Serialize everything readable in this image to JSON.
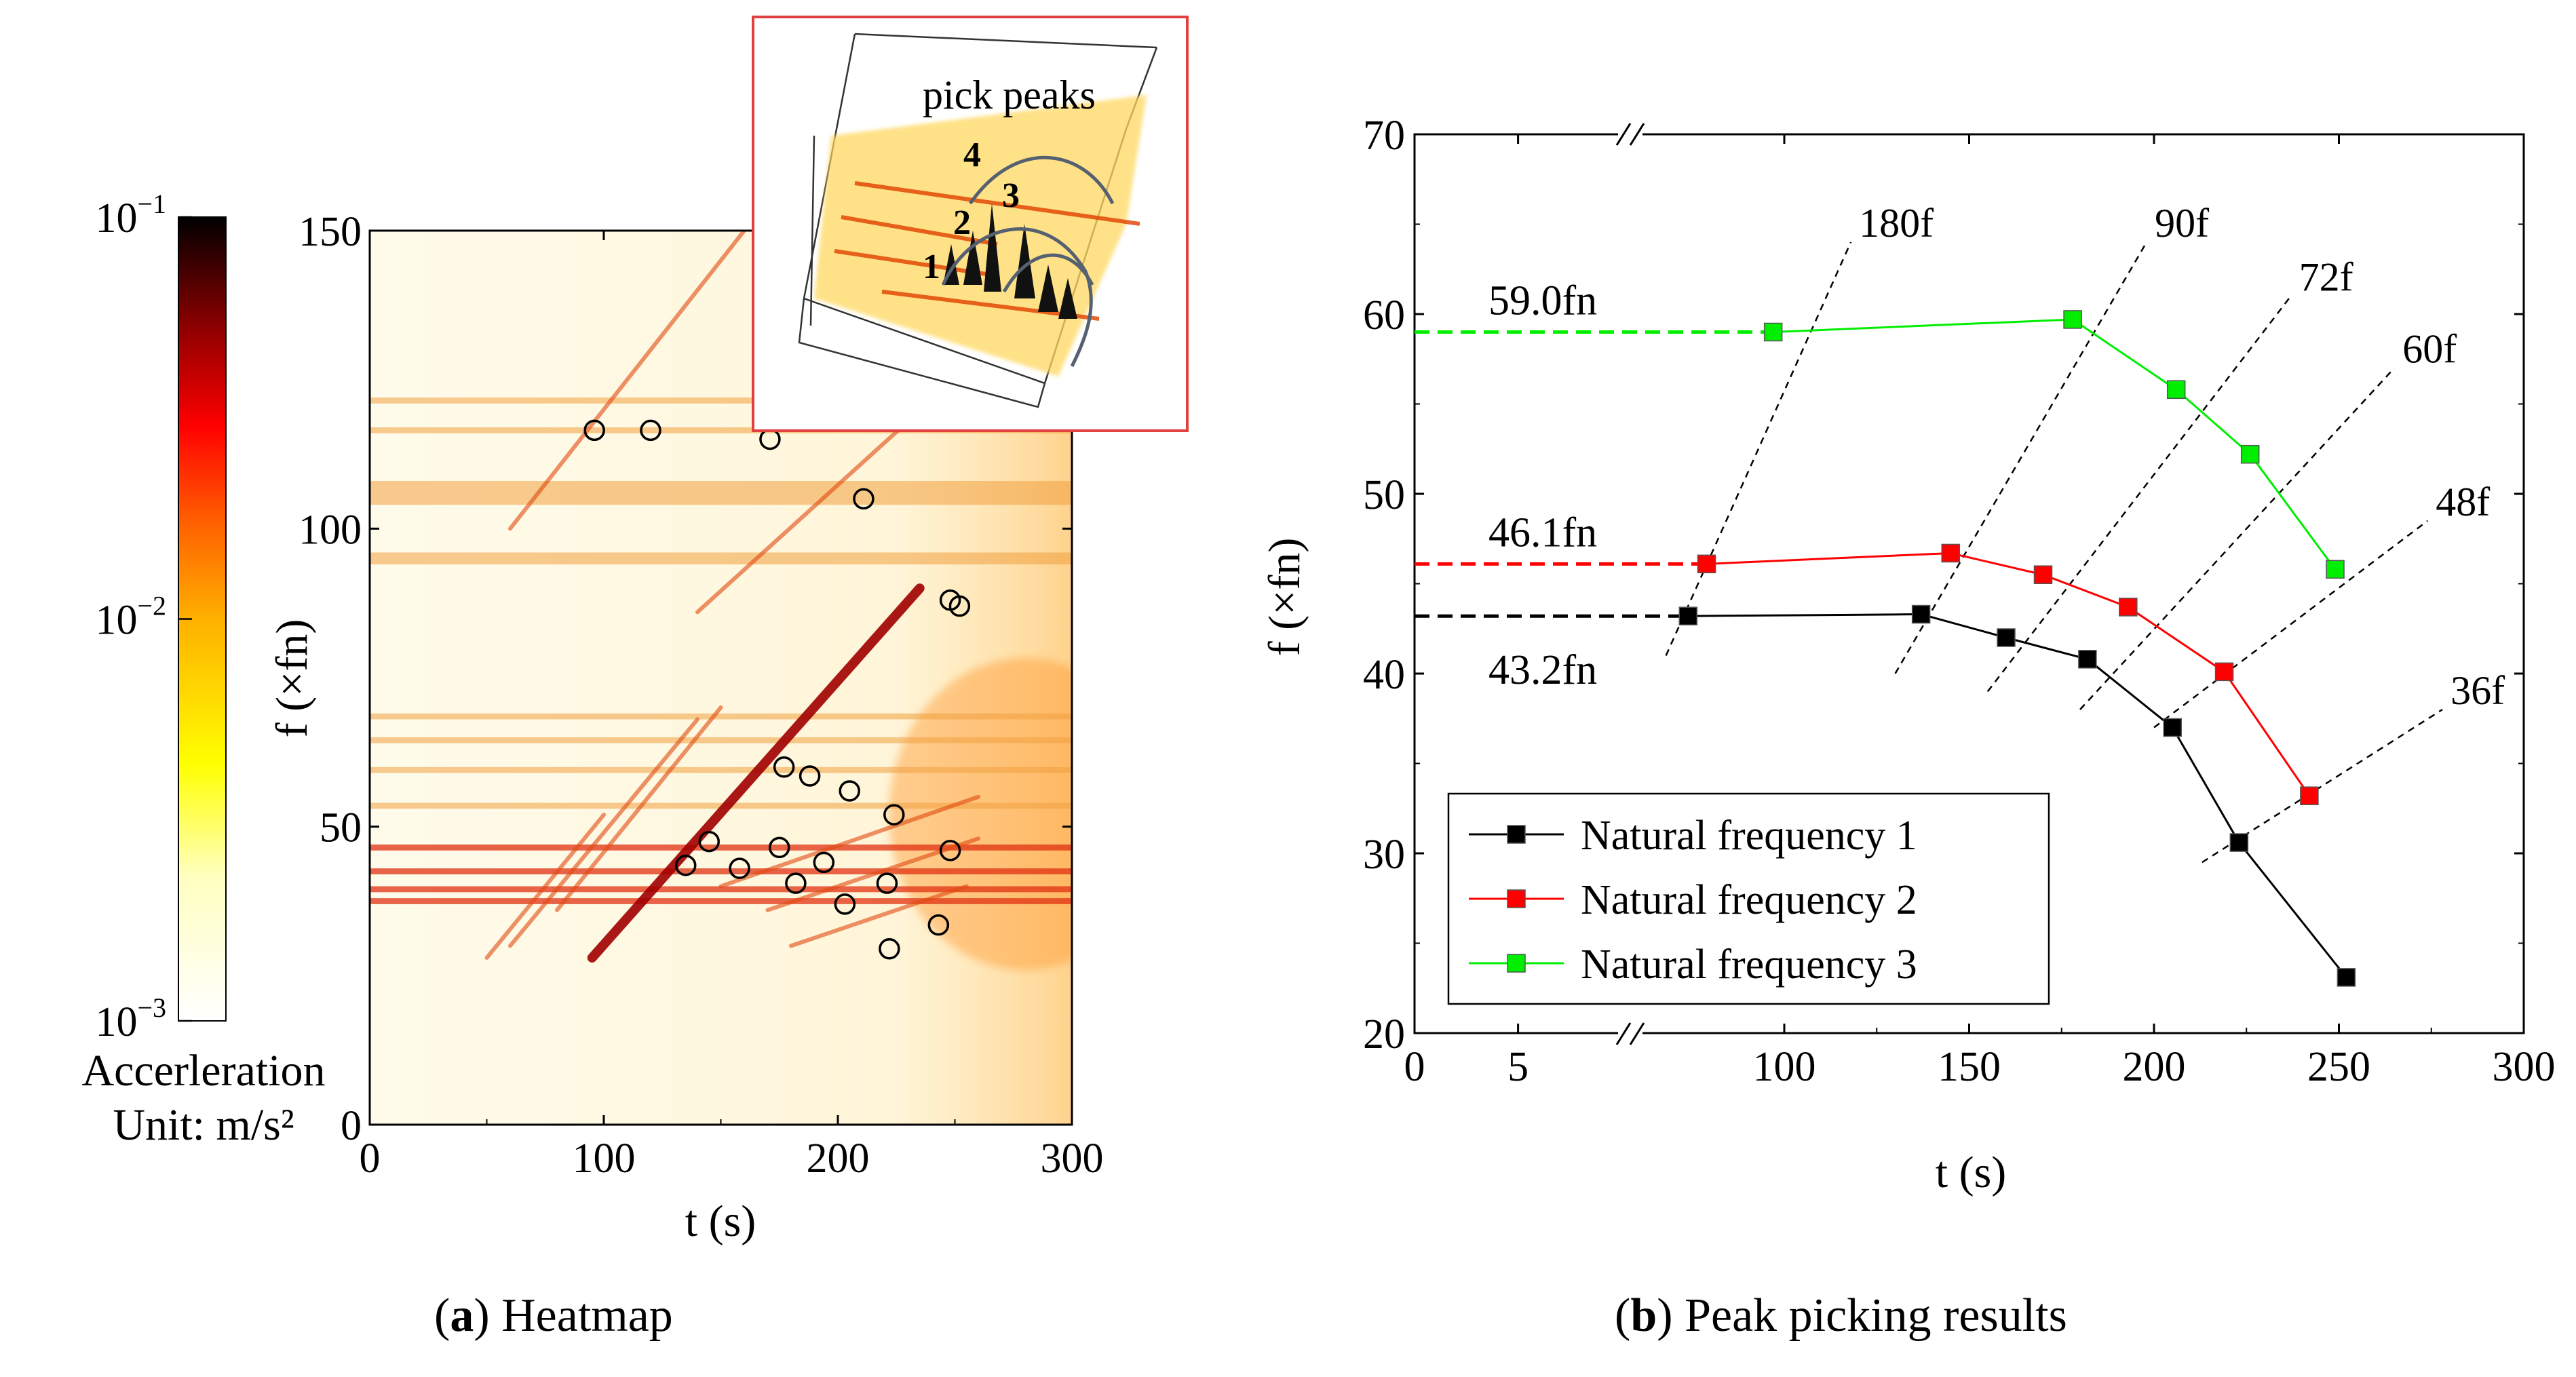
{
  "colors": {
    "axis": "#000000",
    "series1": "#000000",
    "series2": "#ff0000",
    "series3": "#00ee00",
    "inset_border": "#e04040",
    "marker_ring": "#000000"
  },
  "captions": {
    "a": {
      "letter": "a",
      "text": "Heatmap"
    },
    "b": {
      "letter": "b",
      "text": "Peak picking results"
    }
  },
  "chart_data": [
    {
      "type": "heatmap",
      "xlabel": "t (s)",
      "ylabel": "f (×fn)",
      "xlim": [
        0,
        300
      ],
      "ylim": [
        0,
        150
      ],
      "xticks": [
        "0",
        "100",
        "200",
        "300"
      ],
      "yticks": [
        "0",
        "50",
        "100",
        "150"
      ],
      "colorbar": {
        "title": "Accerleration",
        "unit": "Unit: m/s²",
        "scale": "log",
        "range": [
          0.001,
          0.1
        ],
        "ticks": [
          {
            "value": 0.1,
            "base": "10",
            "exp": "−1"
          },
          {
            "value": 0.01,
            "base": "10",
            "exp": "−2"
          },
          {
            "value": 0.001,
            "base": "10",
            "exp": "−3"
          }
        ]
      },
      "bands": [
        {
          "t": [
            0,
            300
          ],
          "f": [
            42,
            43
          ]
        },
        {
          "t": [
            0,
            300
          ],
          "f": [
            39,
            40
          ]
        },
        {
          "t": [
            0,
            300
          ],
          "f": [
            46,
            47
          ]
        },
        {
          "t": [
            0,
            300
          ],
          "f": [
            53,
            54
          ]
        },
        {
          "t": [
            0,
            300
          ],
          "f": [
            59,
            60
          ]
        },
        {
          "t": [
            0,
            300
          ],
          "f": [
            64,
            65
          ]
        },
        {
          "t": [
            0,
            300
          ],
          "f": [
            68,
            69
          ]
        },
        {
          "t": [
            0,
            300
          ],
          "f": [
            104,
            108
          ]
        },
        {
          "t": [
            0,
            300
          ],
          "f": [
            94,
            96
          ]
        },
        {
          "t": [
            0,
            300
          ],
          "f": [
            116,
            117
          ]
        },
        {
          "t": [
            0,
            300
          ],
          "f": [
            121,
            122
          ]
        },
        {
          "t": [
            0,
            300
          ],
          "f": [
            37,
            38
          ]
        }
      ],
      "ridges": [
        {
          "t": [
            95,
            235
          ],
          "f": [
            28,
            90
          ]
        },
        {
          "t": [
            80,
            150
          ],
          "f": [
            36,
            70
          ]
        },
        {
          "t": [
            60,
            140
          ],
          "f": [
            30,
            68
          ]
        },
        {
          "t": [
            50,
            100
          ],
          "f": [
            28,
            52
          ]
        },
        {
          "t": [
            150,
            260
          ],
          "f": [
            40,
            55
          ]
        },
        {
          "t": [
            170,
            260
          ],
          "f": [
            36,
            48
          ]
        },
        {
          "t": [
            180,
            255
          ],
          "f": [
            30,
            40
          ]
        },
        {
          "t": [
            60,
            160
          ],
          "f": [
            100,
            150
          ]
        },
        {
          "t": [
            140,
            230
          ],
          "f": [
            86,
            118
          ]
        }
      ],
      "circles": [
        {
          "t": 96,
          "f": 116.5
        },
        {
          "t": 120,
          "f": 116.5
        },
        {
          "t": 171,
          "f": 115
        },
        {
          "t": 211,
          "f": 105
        },
        {
          "t": 248,
          "f": 88
        },
        {
          "t": 252,
          "f": 87
        },
        {
          "t": 177,
          "f": 60
        },
        {
          "t": 188,
          "f": 58.5
        },
        {
          "t": 205,
          "f": 56
        },
        {
          "t": 224,
          "f": 52
        },
        {
          "t": 145,
          "f": 47.5
        },
        {
          "t": 175,
          "f": 46.5
        },
        {
          "t": 135,
          "f": 43.5
        },
        {
          "t": 158,
          "f": 43
        },
        {
          "t": 194,
          "f": 44
        },
        {
          "t": 182,
          "f": 40.5
        },
        {
          "t": 221,
          "f": 40.5
        },
        {
          "t": 248,
          "f": 46
        },
        {
          "t": 203,
          "f": 37
        },
        {
          "t": 243,
          "f": 33.5
        },
        {
          "t": 222,
          "f": 29.5
        }
      ],
      "inset": {
        "title": "pick peaks",
        "labels": [
          "1",
          "2",
          "3",
          "4"
        ]
      }
    },
    {
      "type": "line",
      "xlabel": "t (s)",
      "ylabel": "f (×fn)",
      "xlim": [
        0,
        300
      ],
      "ylim": [
        20,
        70
      ],
      "axis_break": true,
      "xticks": [
        "0",
        "5",
        "100",
        "150",
        "200",
        "250",
        "300"
      ],
      "yticks": [
        "20",
        "30",
        "40",
        "50",
        "60",
        "70"
      ],
      "legend_position": "bottom-left",
      "series": [
        {
          "name": "Natural frequency 1",
          "color": "#000000",
          "x": [
            74,
            137,
            160,
            182,
            205,
            223,
            252
          ],
          "y": [
            43.2,
            43.3,
            42.0,
            40.8,
            37.0,
            30.6,
            23.1
          ]
        },
        {
          "name": "Natural frequency 2",
          "color": "#ff0000",
          "x": [
            79,
            145,
            170,
            193,
            219,
            242
          ],
          "y": [
            46.1,
            46.7,
            45.5,
            43.7,
            40.1,
            33.2
          ]
        },
        {
          "name": "Natural frequency 3",
          "color": "#00ee00",
          "x": [
            97,
            178,
            206,
            226,
            249
          ],
          "y": [
            59.0,
            59.7,
            55.8,
            52.2,
            45.8
          ]
        }
      ],
      "baselines": [
        {
          "label": "59.0fn",
          "y": 59.0,
          "x_end": 97,
          "color": "#00ee00"
        },
        {
          "label": "46.1fn",
          "y": 46.1,
          "x_end": 79,
          "color": "#ff0000"
        },
        {
          "label": "43.2fn",
          "y": 43.2,
          "x_end": 74,
          "color": "#000000"
        }
      ],
      "order_lines": [
        {
          "label": "180f",
          "x": [
            68,
            118
          ],
          "y": [
            41,
            64
          ]
        },
        {
          "label": "90f",
          "x": [
            130,
            198
          ],
          "y": [
            40,
            64
          ]
        },
        {
          "label": "72f",
          "x": [
            155,
            237
          ],
          "y": [
            39,
            61
          ]
        },
        {
          "label": "60f",
          "x": [
            180,
            265
          ],
          "y": [
            38,
            57
          ]
        },
        {
          "label": "48f",
          "x": [
            200,
            274
          ],
          "y": [
            37,
            48.5
          ]
        },
        {
          "label": "36f",
          "x": [
            213,
            278
          ],
          "y": [
            29.5,
            38
          ]
        }
      ]
    }
  ]
}
